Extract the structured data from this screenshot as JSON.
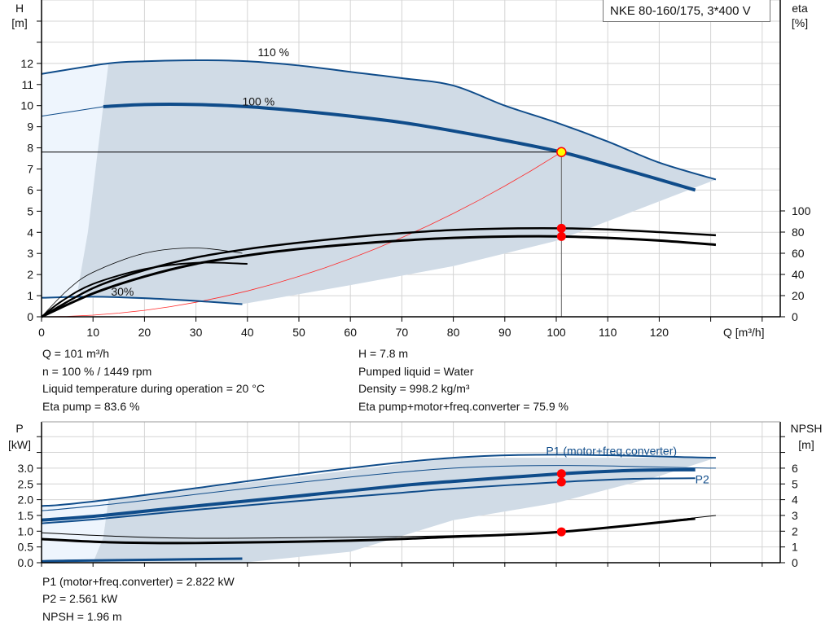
{
  "title": "NKE 80-160/175, 3*400 V",
  "chart_data": [
    {
      "type": "line",
      "name": "head-efficiency",
      "xlabel": "Q [m³/h]",
      "ylabel_left": "H\n[m]",
      "ylabel_left_lines": [
        "H",
        "[m]"
      ],
      "ylabel_right_lines": [
        "eta",
        "[%]"
      ],
      "xlim": [
        0,
        143
      ],
      "ylim_left": [
        0,
        15
      ],
      "ylim_right_eta": [
        0,
        100
      ],
      "xticks": [
        0,
        10,
        20,
        30,
        40,
        50,
        60,
        70,
        80,
        90,
        100,
        110,
        120
      ],
      "yticks_left": [
        0,
        1,
        2,
        3,
        4,
        5,
        6,
        7,
        8,
        9,
        10,
        11,
        12
      ],
      "yticks_right": [
        0,
        20,
        40,
        60,
        80,
        100
      ],
      "grid": true,
      "labels": {
        "p110": "110 %",
        "p100": "100 %",
        "p30": "30%"
      },
      "head_curves": [
        {
          "id": "110",
          "points": [
            [
              0,
              11.5
            ],
            [
              13,
              12
            ],
            [
              20,
              12.1
            ],
            [
              30,
              12.15
            ],
            [
              40,
              12.1
            ],
            [
              50,
              11.9
            ],
            [
              60,
              11.6
            ],
            [
              70,
              11.3
            ],
            [
              80,
              10.95
            ],
            [
              90,
              10.0
            ],
            [
              100,
              9.2
            ],
            [
              110,
              8.3
            ],
            [
              120,
              7.3
            ],
            [
              131,
              6.5
            ]
          ]
        },
        {
          "id": "100",
          "points": [
            [
              12,
              9.95
            ],
            [
              20,
              10.05
            ],
            [
              30,
              10.05
            ],
            [
              40,
              9.95
            ],
            [
              50,
              9.75
            ],
            [
              60,
              9.5
            ],
            [
              70,
              9.2
            ],
            [
              80,
              8.8
            ],
            [
              90,
              8.35
            ],
            [
              101,
              7.8
            ],
            [
              110,
              7.2
            ],
            [
              120,
              6.5
            ],
            [
              127,
              6.0
            ]
          ]
        },
        {
          "id": "100-ext",
          "points": [
            [
              0,
              9.5
            ],
            [
              12,
              9.95
            ]
          ]
        },
        {
          "id": "30",
          "points": [
            [
              0,
              0.9
            ],
            [
              10,
              0.95
            ],
            [
              20,
              0.88
            ],
            [
              30,
              0.75
            ],
            [
              39,
              0.6
            ]
          ]
        }
      ],
      "eta_curves": [
        {
          "id": "eta-pump",
          "points": [
            [
              0,
              0
            ],
            [
              10,
              27
            ],
            [
              20,
              44
            ],
            [
              30,
              56
            ],
            [
              40,
              64
            ],
            [
              50,
              70
            ],
            [
              60,
              75
            ],
            [
              70,
              79
            ],
            [
              80,
              82
            ],
            [
              90,
              83.4
            ],
            [
              101,
              83.6
            ],
            [
              110,
              82.5
            ],
            [
              120,
              80
            ],
            [
              131,
              77
            ]
          ]
        },
        {
          "id": "eta-total",
          "points": [
            [
              0,
              0
            ],
            [
              10,
              22
            ],
            [
              20,
              38
            ],
            [
              30,
              50
            ],
            [
              40,
              58
            ],
            [
              50,
              64
            ],
            [
              60,
              68.5
            ],
            [
              70,
              72
            ],
            [
              80,
              74.5
            ],
            [
              90,
              75.8
            ],
            [
              101,
              75.9
            ],
            [
              110,
              74.5
            ],
            [
              120,
              72
            ],
            [
              131,
              68
            ]
          ]
        },
        {
          "id": "eta-70",
          "points": [
            [
              0,
              0
            ],
            [
              4,
              15
            ],
            [
              10,
              31
            ],
            [
              20,
              45
            ],
            [
              30,
              51
            ],
            [
              40,
              50
            ]
          ]
        },
        {
          "id": "eta-30",
          "points": [
            [
              0,
              0
            ],
            [
              5,
              25
            ],
            [
              10,
              42
            ],
            [
              20,
              60
            ],
            [
              30,
              65
            ],
            [
              39,
              60
            ]
          ]
        }
      ],
      "area_outer": [
        [
          0,
          0
        ],
        [
          0,
          11.5
        ],
        [
          13,
          12
        ],
        [
          131,
          6.5
        ],
        [
          115,
          5
        ],
        [
          100,
          3.6
        ],
        [
          80,
          2.4
        ],
        [
          60,
          1.5
        ],
        [
          39,
          0.6
        ],
        [
          10,
          0.95
        ],
        [
          0,
          0.9
        ]
      ],
      "area_inner": [
        [
          13,
          12
        ],
        [
          20,
          12.1
        ],
        [
          30,
          12.15
        ],
        [
          40,
          12.1
        ],
        [
          50,
          11.9
        ],
        [
          60,
          11.6
        ],
        [
          70,
          11.3
        ],
        [
          80,
          10.95
        ],
        [
          90,
          10.0
        ],
        [
          100,
          9.2
        ],
        [
          110,
          8.3
        ],
        [
          120,
          7.3
        ],
        [
          131,
          6.5
        ],
        [
          115,
          5
        ],
        [
          100,
          3.6
        ],
        [
          80,
          2.4
        ],
        [
          60,
          1.5
        ],
        [
          39,
          0.6
        ],
        [
          10,
          0.95
        ],
        [
          7,
          1.2
        ],
        [
          9,
          4
        ],
        [
          11,
          8
        ],
        [
          13,
          12
        ]
      ],
      "system_curve_Hmax": 7.8,
      "operating_point": {
        "Q": 101,
        "H": 7.8,
        "eta_pump": 83.6,
        "eta_total": 75.9
      },
      "colors": {
        "curve": "#0f4c8a",
        "area": "#d0dbe6",
        "area_light": "#eef5fd",
        "system": "#ff2a2a",
        "marker": "#ff0000",
        "op_fill": "#ffff00"
      }
    },
    {
      "type": "line",
      "name": "power-npsh",
      "ylabel_left_lines": [
        "P",
        "[kW]"
      ],
      "ylabel_right_lines": [
        "NPSH",
        "[m]"
      ],
      "xlim": [
        0,
        143
      ],
      "ylim_left": [
        0,
        4.5
      ],
      "ylim_right": [
        0,
        9
      ],
      "yticks_left": [
        "0.0",
        "0.5",
        "1.0",
        "1.5",
        "2.0",
        "2.5",
        "3.0"
      ],
      "yticks_right": [
        0,
        1,
        2,
        3,
        4,
        5,
        6
      ],
      "grid": true,
      "labels": {
        "p1": "P1 (motor+freq.converter)",
        "p2": "P2"
      },
      "power_curves": [
        {
          "id": "p1-110",
          "w": 2,
          "points": [
            [
              0,
              1.8
            ],
            [
              13,
              2.0
            ],
            [
              80,
              3.33
            ],
            [
              131,
              3.33
            ]
          ]
        },
        {
          "id": "p2-110",
          "w": 1,
          "points": [
            [
              0,
              1.65
            ],
            [
              13,
              1.85
            ],
            [
              80,
              3.0
            ],
            [
              131,
              3.0
            ]
          ]
        },
        {
          "id": "p1-100",
          "w": 4,
          "points": [
            [
              0,
              1.35
            ],
            [
              12,
              1.5
            ],
            [
              30,
              1.8
            ],
            [
              50,
              2.12
            ],
            [
              70,
              2.45
            ],
            [
              80,
              2.58
            ],
            [
              101,
              2.822
            ],
            [
              115,
              2.93
            ],
            [
              127,
              2.95
            ]
          ]
        },
        {
          "id": "p2-100",
          "w": 2,
          "points": [
            [
              0,
              1.25
            ],
            [
              12,
              1.4
            ],
            [
              30,
              1.68
            ],
            [
              50,
              1.96
            ],
            [
              70,
              2.22
            ],
            [
              80,
              2.35
            ],
            [
              101,
              2.561
            ],
            [
              115,
              2.66
            ],
            [
              127,
              2.68
            ]
          ]
        },
        {
          "id": "p-30",
          "w": 3,
          "points": [
            [
              0,
              0.04
            ],
            [
              5,
              0.06
            ],
            [
              39,
              0.13
            ]
          ]
        }
      ],
      "npsh_curves": [
        {
          "id": "npsh-a",
          "w": 1,
          "points": [
            [
              0,
              1.9
            ],
            [
              13,
              1.7
            ],
            [
              30,
              1.55
            ],
            [
              60,
              1.62
            ],
            [
              80,
              1.72
            ],
            [
              101,
              1.96
            ],
            [
              120,
              2.6
            ],
            [
              131,
              3.0
            ]
          ]
        },
        {
          "id": "npsh-b",
          "w": 3,
          "points": [
            [
              0,
              1.5
            ],
            [
              13,
              1.3
            ],
            [
              30,
              1.25
            ],
            [
              60,
              1.4
            ],
            [
              80,
              1.65
            ],
            [
              101,
              1.96
            ],
            [
              127,
              2.8
            ]
          ]
        }
      ],
      "area_inner": [
        [
          13,
          2.0
        ],
        [
          80,
          3.33
        ],
        [
          131,
          3.33
        ],
        [
          120,
          2.75
        ],
        [
          100,
          1.9
        ],
        [
          80,
          1.35
        ],
        [
          60,
          0.35
        ],
        [
          39,
          0.0
        ],
        [
          10,
          0.0
        ],
        [
          12,
          0.8
        ]
      ],
      "area_outer": [
        [
          0,
          0
        ],
        [
          0,
          1.8
        ],
        [
          13,
          2.0
        ],
        [
          12,
          0.8
        ],
        [
          10,
          0
        ]
      ],
      "operating_point": {
        "P1": 2.822,
        "P2": 2.561,
        "NPSH": 1.96
      }
    }
  ],
  "readout_top": {
    "q": "Q = 101 m³/h",
    "n": "n = 100 % / 1449 rpm",
    "temp": "Liquid temperature during operation = 20 °C",
    "eta_pump": "Eta pump = 83.6 %",
    "h": "H = 7.8 m",
    "liquid": "Pumped liquid = Water",
    "density": "Density = 998.2 kg/m³",
    "eta_total": "Eta pump+motor+freq.converter = 75.9 %"
  },
  "readout_bottom": {
    "p1": "P1 (motor+freq.converter) = 2.822 kW",
    "p2": "P2 = 2.561 kW",
    "npsh": "NPSH = 1.96 m"
  }
}
